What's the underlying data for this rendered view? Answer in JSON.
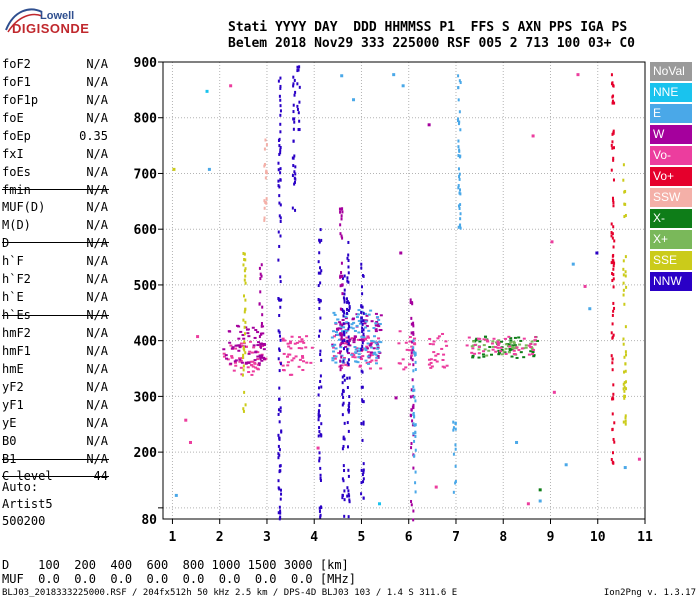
{
  "logo": {
    "line1": "Lowell",
    "line2": "DIGISONDE"
  },
  "header": {
    "row1": "Stati YYYY DAY  DDD HHMMSS P1  FFS S AXN PPS IGA PS",
    "row2": "Belem 2018 Nov29 333 225000 RSF 005 2 713 100 03+ C0"
  },
  "params": [
    {
      "label": "foF2",
      "value": "N/A"
    },
    {
      "label": "foF1",
      "value": "N/A"
    },
    {
      "label": "foF1p",
      "value": "N/A"
    },
    {
      "label": "foE",
      "value": "N/A"
    },
    {
      "label": "foEp",
      "value": "0.35"
    },
    {
      "label": "fxI",
      "value": "N/A"
    },
    {
      "label": "foEs",
      "value": "N/A"
    },
    {
      "label": "fmin",
      "value": "N/A"
    },
    {
      "label": "MUF(D)",
      "value": "N/A"
    },
    {
      "label": "M(D)",
      "value": "N/A"
    },
    {
      "label": "D",
      "value": "N/A"
    },
    {
      "label": "h`F",
      "value": "N/A"
    },
    {
      "label": "h`F2",
      "value": "N/A"
    },
    {
      "label": "h`E",
      "value": "N/A"
    },
    {
      "label": "h`Es",
      "value": "N/A"
    },
    {
      "label": "hmF2",
      "value": "N/A"
    },
    {
      "label": "hmF1",
      "value": "N/A"
    },
    {
      "label": "hmE",
      "value": "N/A"
    },
    {
      "label": "yF2",
      "value": "N/A"
    },
    {
      "label": "yF1",
      "value": "N/A"
    },
    {
      "label": "yE",
      "value": "N/A"
    },
    {
      "label": "B0",
      "value": "N/A"
    },
    {
      "label": "B1",
      "value": "N/A"
    },
    {
      "label": "C-level",
      "value": "44"
    }
  ],
  "auto": {
    "label": "Auto:",
    "artist": "Artist5",
    "code": "500200"
  },
  "bottom": {
    "d_row": "D    100  200  400  600  800 1000 1500 3000 [km]",
    "muf_row": "MUF  0.0  0.0  0.0  0.0  0.0  0.0  0.0  0.0 [MHz]"
  },
  "footer": {
    "left": "BLJ03_2018333225000.RSF / 204fx512h 50 kHz 2.5 km / DPS-4D BLJ03 103 / 1.4 S 311.6 E",
    "right": "Ion2Png v. 1.3.17"
  },
  "legend": [
    {
      "label": "NoVal",
      "color": "#9a9a9a"
    },
    {
      "label": "NNE",
      "color": "#19c3ee"
    },
    {
      "label": "E",
      "color": "#4aa8e8"
    },
    {
      "label": "W",
      "color": "#a5009d"
    },
    {
      "label": "Vo-",
      "color": "#ec3d9e"
    },
    {
      "label": "Vo+",
      "color": "#e5002c"
    },
    {
      "label": "SSW",
      "color": "#f4b0a8"
    },
    {
      "label": "X-",
      "color": "#0e7d18"
    },
    {
      "label": "X+",
      "color": "#7ab85a"
    },
    {
      "label": "SSE",
      "color": "#cbcb1a"
    },
    {
      "label": "NNW",
      "color": "#2a00c6"
    }
  ],
  "chart_data": {
    "type": "scatter",
    "title": "",
    "xlabel": "",
    "ylabel": "",
    "xlim": [
      0.8,
      11.0
    ],
    "ylim": [
      80,
      900
    ],
    "x_ticks": [
      1,
      2,
      3,
      4,
      5,
      6,
      7,
      8,
      9,
      10,
      11
    ],
    "y_ticks": [
      100,
      200,
      300,
      400,
      500,
      600,
      700,
      800,
      900
    ],
    "y_tick_labels": [
      "",
      "200",
      "300",
      "400",
      "500",
      "600",
      "700",
      "800",
      "900"
    ],
    "y_bottom_label": "80",
    "grid": true,
    "clusters": [
      {
        "series": "Vo-",
        "x": [
          2.05,
          2.95
        ],
        "y": [
          340,
          400
        ]
      },
      {
        "series": "Vo-",
        "x": [
          3.25,
          3.95
        ],
        "y": [
          340,
          410
        ]
      },
      {
        "series": "Vo-",
        "x": [
          4.35,
          5.4
        ],
        "y": [
          350,
          410
        ]
      },
      {
        "series": "Vo-",
        "x": [
          5.75,
          6.1
        ],
        "y": [
          350,
          420
        ]
      },
      {
        "series": "Vo-",
        "x": [
          6.4,
          6.85
        ],
        "y": [
          350,
          415
        ]
      },
      {
        "series": "W",
        "x": [
          2.05,
          2.95
        ],
        "y": [
          360,
          430
        ]
      },
      {
        "series": "W",
        "x": [
          4.35,
          5.4
        ],
        "y": [
          370,
          450
        ]
      },
      {
        "series": "E",
        "x": [
          4.35,
          5.4
        ],
        "y": [
          360,
          460
        ]
      },
      {
        "series": "X-",
        "x": [
          7.3,
          8.7
        ],
        "y": [
          370,
          410
        ]
      },
      {
        "series": "X+",
        "x": [
          7.3,
          8.7
        ],
        "y": [
          375,
          405
        ]
      },
      {
        "series": "Vo-",
        "x": [
          7.2,
          8.7
        ],
        "y": [
          375,
          410
        ]
      }
    ],
    "columns": [
      {
        "series": "NNW",
        "x": 3.25,
        "y": [
          80,
          900
        ]
      },
      {
        "series": "NNW",
        "x": 3.55,
        "y": [
          600,
          900
        ]
      },
      {
        "series": "NNW",
        "x": 3.65,
        "y": [
          780,
          900
        ]
      },
      {
        "series": "NNW",
        "x": 4.1,
        "y": [
          80,
          620
        ]
      },
      {
        "series": "NNW",
        "x": 4.6,
        "y": [
          80,
          520
        ]
      },
      {
        "series": "NNW",
        "x": 4.7,
        "y": [
          80,
          580
        ]
      },
      {
        "series": "NNW",
        "x": 5.0,
        "y": [
          100,
          540
        ]
      },
      {
        "series": "W",
        "x": 6.05,
        "y": [
          80,
          480
        ]
      },
      {
        "series": "E",
        "x": 6.1,
        "y": [
          120,
          420
        ]
      },
      {
        "series": "E",
        "x": 7.05,
        "y": [
          600,
          880
        ]
      },
      {
        "series": "E",
        "x": 6.95,
        "y": [
          130,
          260
        ]
      },
      {
        "series": "Vo+",
        "x": 10.3,
        "y": [
          180,
          880
        ]
      },
      {
        "series": "SSE",
        "x": 10.55,
        "y": [
          240,
          720
        ]
      },
      {
        "series": "SSE",
        "x": 2.5,
        "y": [
          250,
          560
        ]
      },
      {
        "series": "SSW",
        "x": 2.95,
        "y": [
          600,
          770
        ]
      },
      {
        "series": "W",
        "x": 4.55,
        "y": [
          350,
          640
        ]
      },
      {
        "series": "W",
        "x": 2.85,
        "y": [
          350,
          540
        ]
      }
    ],
    "scatter": [
      {
        "series": "NNE",
        "x": 1.7,
        "y": 850
      },
      {
        "series": "E",
        "x": 1.75,
        "y": 710
      },
      {
        "series": "E",
        "x": 1.05,
        "y": 125
      },
      {
        "series": "Vo-",
        "x": 2.2,
        "y": 860
      },
      {
        "series": "Vo-",
        "x": 1.5,
        "y": 410
      },
      {
        "series": "Vo-",
        "x": 1.25,
        "y": 260
      },
      {
        "series": "Vo-",
        "x": 1.35,
        "y": 220
      },
      {
        "series": "E",
        "x": 4.55,
        "y": 878
      },
      {
        "series": "E",
        "x": 4.8,
        "y": 835
      },
      {
        "series": "E",
        "x": 5.65,
        "y": 880
      },
      {
        "series": "W",
        "x": 6.4,
        "y": 790
      },
      {
        "series": "W",
        "x": 5.8,
        "y": 560
      },
      {
        "series": "E",
        "x": 5.85,
        "y": 860
      },
      {
        "series": "Vo-",
        "x": 9.55,
        "y": 880
      },
      {
        "series": "Vo-",
        "x": 8.6,
        "y": 770
      },
      {
        "series": "E",
        "x": 9.45,
        "y": 540
      },
      {
        "series": "NNW",
        "x": 9.95,
        "y": 560
      },
      {
        "series": "E",
        "x": 9.8,
        "y": 460
      },
      {
        "series": "Vo-",
        "x": 9.7,
        "y": 500
      },
      {
        "series": "Vo-",
        "x": 9.0,
        "y": 580
      },
      {
        "series": "E",
        "x": 8.25,
        "y": 220
      },
      {
        "series": "E",
        "x": 8.75,
        "y": 115
      },
      {
        "series": "X-",
        "x": 8.75,
        "y": 135
      },
      {
        "series": "Vo-",
        "x": 8.5,
        "y": 110
      },
      {
        "series": "E",
        "x": 9.3,
        "y": 180
      },
      {
        "series": "Vo-",
        "x": 9.05,
        "y": 310
      },
      {
        "series": "E",
        "x": 10.55,
        "y": 175
      },
      {
        "series": "Vo-",
        "x": 10.85,
        "y": 190
      },
      {
        "series": "NNE",
        "x": 5.35,
        "y": 110
      },
      {
        "series": "Vo-",
        "x": 4.05,
        "y": 210
      },
      {
        "series": "W",
        "x": 5.7,
        "y": 300
      },
      {
        "series": "Vo-",
        "x": 6.55,
        "y": 140
      },
      {
        "series": "SSE",
        "x": 1.0,
        "y": 710
      }
    ]
  }
}
